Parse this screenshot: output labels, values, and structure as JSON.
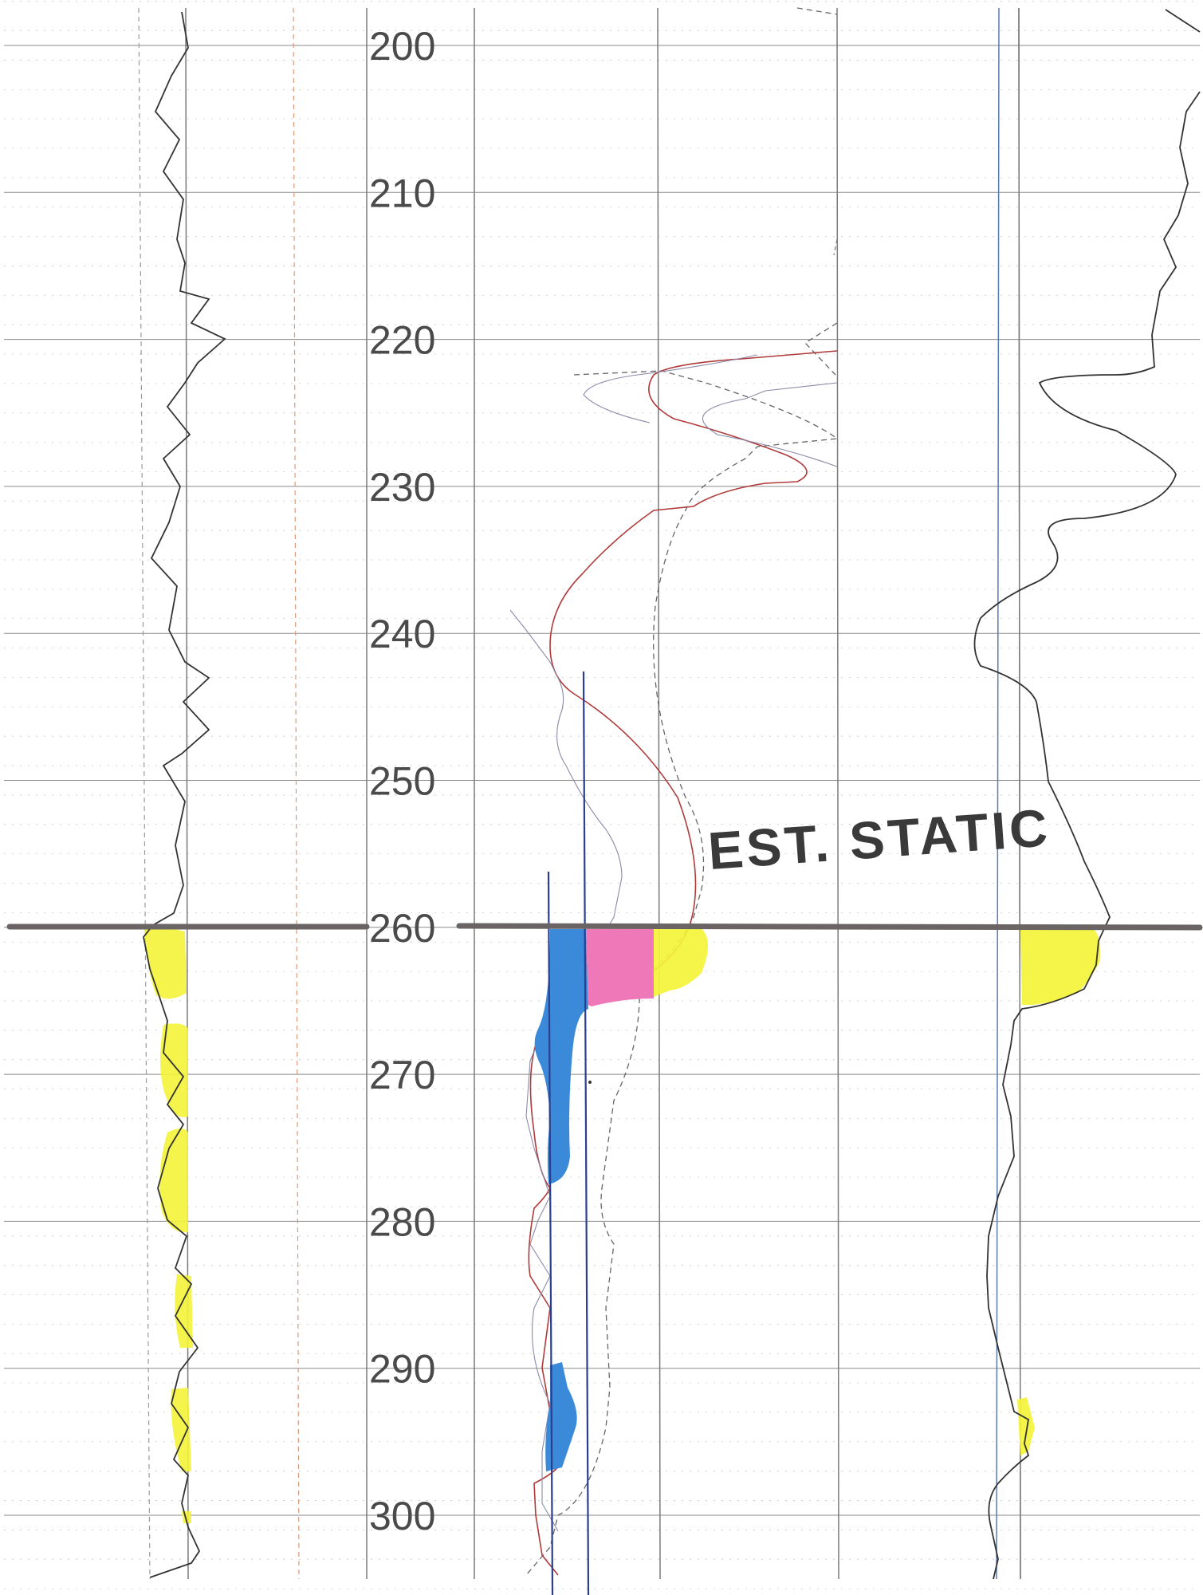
{
  "log": {
    "depth_min": 195,
    "depth_max": 305,
    "depth_labels": [
      "200",
      "210",
      "220",
      "230",
      "240",
      "250",
      "260",
      "270",
      "280",
      "290",
      "300"
    ],
    "annotation": "EST. STATIC",
    "static_depth": 260,
    "colors": {
      "grid": "#8a8a8a",
      "minor_grid": "#c8c8c8",
      "curve": "#333333",
      "red_curve": "#b03a3a",
      "dashed_curve": "#666666",
      "blue_line": "#2b3f8f",
      "static_line": "#6a6464",
      "yellow": "#f3f33a",
      "blue_fill": "#3b8ad9",
      "pink_fill": "#ef79b8"
    }
  }
}
